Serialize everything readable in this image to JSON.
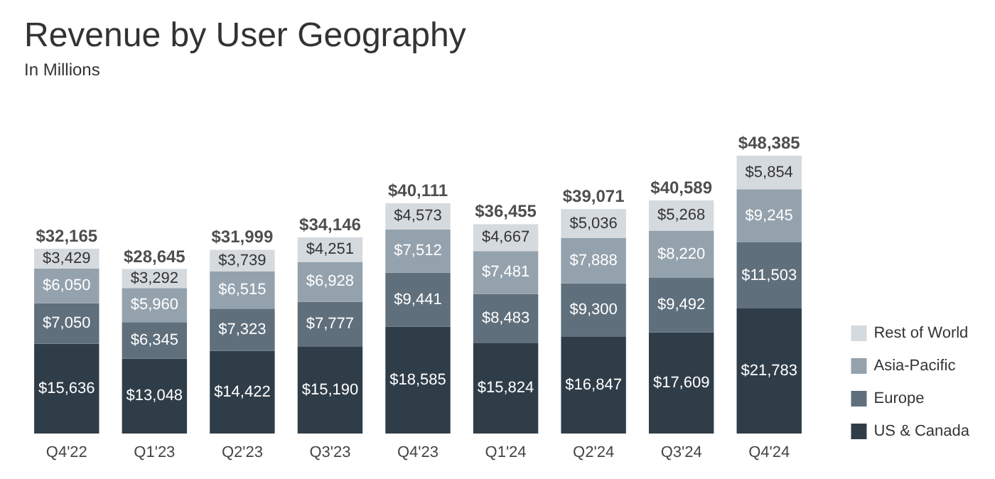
{
  "chart_data": {
    "type": "bar",
    "title": "Revenue by User Geography",
    "subtitle": "In Millions",
    "stacked": true,
    "legend": "bottom right",
    "categories": [
      "Q4'22",
      "Q1'23",
      "Q2'23",
      "Q3'23",
      "Q4'23",
      "Q1'24",
      "Q2'24",
      "Q3'24",
      "Q4'24"
    ],
    "series": [
      {
        "name": "US & Canada",
        "color": "#2f3d48",
        "values": [
          15636,
          13048,
          14422,
          15190,
          18585,
          15824,
          16847,
          17609,
          21783
        ],
        "value_labels": [
          "$15,636",
          "$13,048",
          "$14,422",
          "$15,190",
          "$18,585",
          "$15,824",
          "$16,847",
          "$17,609",
          "$21,783"
        ]
      },
      {
        "name": "Europe",
        "color": "#5f6f7c",
        "values": [
          7050,
          6345,
          7323,
          7777,
          9441,
          8483,
          9300,
          9492,
          11503
        ],
        "value_labels": [
          "$7,050",
          "$6,345",
          "$7,323",
          "$7,777",
          "$9,441",
          "$8,483",
          "$9,300",
          "$9,492",
          "$11,503"
        ]
      },
      {
        "name": "Asia-Pacific",
        "color": "#94a2ad",
        "values": [
          6050,
          5960,
          6515,
          6928,
          7512,
          7481,
          7888,
          8220,
          9245
        ],
        "value_labels": [
          "$6,050",
          "$5,960",
          "$6,515",
          "$6,928",
          "$7,512",
          "$7,481",
          "$7,888",
          "$8,220",
          "$9,245"
        ]
      },
      {
        "name": "Rest of World",
        "color": "#d5dade",
        "values": [
          3429,
          3292,
          3739,
          4251,
          4573,
          4667,
          5036,
          5268,
          5854
        ],
        "value_labels": [
          "$3,429",
          "$3,292",
          "$3,739",
          "$4,251",
          "$4,573",
          "$4,667",
          "$5,036",
          "$5,268",
          "$5,854"
        ]
      }
    ],
    "totals": [
      "$32,165",
      "$28,645",
      "$31,999",
      "$34,146",
      "$40,111",
      "$36,455",
      "$39,071",
      "$40,589",
      "$48,385"
    ]
  }
}
